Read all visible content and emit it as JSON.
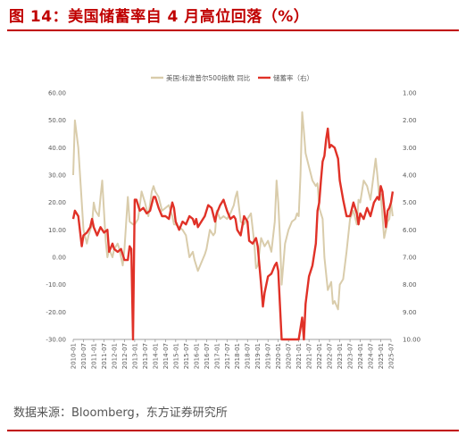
{
  "figure": {
    "title": "图 14：美国储蓄率自 4 月高位回落（%）",
    "source": "数据来源：Bloomberg，东方证券研究所"
  },
  "colors": {
    "spx_yoy": "#d9ccab",
    "saving_rate": "#e03127",
    "accent": "#c00000"
  },
  "chart_data": {
    "type": "line",
    "title": "",
    "legend": [
      "美国:标准普尔500指数 同比",
      "储蓄率（右）"
    ],
    "legend_position": "top-center",
    "grid": false,
    "x_range": [
      "2010-01",
      "2025-07"
    ],
    "x_tick_labels": [
      "2010-01",
      "2010-07",
      "2011-01",
      "2011-07",
      "2012-01",
      "2012-07",
      "2013-01",
      "2013-07",
      "2014-01",
      "2014-07",
      "2015-01",
      "2015-07",
      "2016-01",
      "2016-07",
      "2017-01",
      "2017-07",
      "2018-01",
      "2018-07",
      "2019-01",
      "2019-07",
      "2020-01",
      "2020-07",
      "2021-01",
      "2021-07",
      "2022-01",
      "2022-07",
      "2023-01",
      "2023-07",
      "2024-01",
      "2024-07",
      "2025-01",
      "2025-07"
    ],
    "y_left": {
      "label": "",
      "range": [
        -30,
        60
      ],
      "tick_labels": [
        "60.00",
        "50.00",
        "40.00",
        "30.00",
        "20.00",
        "10.00",
        "0.00",
        "-10.00",
        "-20.00",
        "-30.00"
      ]
    },
    "y_right": {
      "label": "",
      "range": [
        1,
        10
      ],
      "inverted": true,
      "tick_labels": [
        "1.00",
        "2.00",
        "3.00",
        "4.00",
        "5.00",
        "6.00",
        "7.00",
        "8.00",
        "9.00",
        "10.00"
      ]
    },
    "series": [
      {
        "name": "美国:标准普尔500指数 同比",
        "axis": "left",
        "points": [
          [
            "2010-01",
            30
          ],
          [
            "2010-02",
            50
          ],
          [
            "2010-04",
            40
          ],
          [
            "2010-06",
            20
          ],
          [
            "2010-07",
            10
          ],
          [
            "2010-09",
            5
          ],
          [
            "2010-10",
            8
          ],
          [
            "2010-12",
            12
          ],
          [
            "2011-01",
            20
          ],
          [
            "2011-02",
            17
          ],
          [
            "2011-04",
            15
          ],
          [
            "2011-05",
            22
          ],
          [
            "2011-06",
            28
          ],
          [
            "2011-08",
            6
          ],
          [
            "2011-09",
            0
          ],
          [
            "2011-10",
            3
          ],
          [
            "2011-12",
            0
          ],
          [
            "2012-01",
            3
          ],
          [
            "2012-03",
            5
          ],
          [
            "2012-04",
            3
          ],
          [
            "2012-06",
            -3
          ],
          [
            "2012-07",
            3
          ],
          [
            "2012-09",
            22
          ],
          [
            "2012-10",
            13
          ],
          [
            "2012-12",
            12
          ],
          [
            "2013-01",
            12
          ],
          [
            "2013-03",
            14
          ],
          [
            "2013-05",
            24
          ],
          [
            "2013-07",
            20
          ],
          [
            "2013-09",
            15
          ],
          [
            "2013-11",
            24
          ],
          [
            "2013-12",
            26
          ],
          [
            "2014-01",
            24
          ],
          [
            "2014-03",
            22
          ],
          [
            "2014-05",
            17
          ],
          [
            "2014-07",
            18
          ],
          [
            "2014-09",
            19
          ],
          [
            "2014-11",
            15
          ],
          [
            "2014-12",
            12
          ],
          [
            "2015-01",
            12
          ],
          [
            "2015-03",
            11
          ],
          [
            "2015-05",
            10
          ],
          [
            "2015-07",
            8
          ],
          [
            "2015-09",
            0
          ],
          [
            "2015-11",
            2
          ],
          [
            "2015-12",
            -1
          ],
          [
            "2016-01",
            -3
          ],
          [
            "2016-02",
            -5
          ],
          [
            "2016-04",
            -2
          ],
          [
            "2016-06",
            1
          ],
          [
            "2016-07",
            3
          ],
          [
            "2016-09",
            10
          ],
          [
            "2016-11",
            8
          ],
          [
            "2016-12",
            9
          ],
          [
            "2017-01",
            17
          ],
          [
            "2017-03",
            14
          ],
          [
            "2017-05",
            15
          ],
          [
            "2017-07",
            14
          ],
          [
            "2017-09",
            16
          ],
          [
            "2017-11",
            19
          ],
          [
            "2017-12",
            22
          ],
          [
            "2018-01",
            24
          ],
          [
            "2018-03",
            13
          ],
          [
            "2018-05",
            12
          ],
          [
            "2018-07",
            14
          ],
          [
            "2018-09",
            16
          ],
          [
            "2018-11",
            5
          ],
          [
            "2018-12",
            -4
          ],
          [
            "2019-01",
            -3
          ],
          [
            "2019-03",
            7
          ],
          [
            "2019-05",
            4
          ],
          [
            "2019-07",
            6
          ],
          [
            "2019-09",
            2
          ],
          [
            "2019-11",
            13
          ],
          [
            "2019-12",
            28
          ],
          [
            "2020-01",
            20
          ],
          [
            "2020-02",
            7
          ],
          [
            "2020-03",
            -10
          ],
          [
            "2020-05",
            5
          ],
          [
            "2020-07",
            10
          ],
          [
            "2020-09",
            13
          ],
          [
            "2020-11",
            14
          ],
          [
            "2020-12",
            16
          ],
          [
            "2021-01",
            15
          ],
          [
            "2021-02",
            30
          ],
          [
            "2021-03",
            53
          ],
          [
            "2021-04",
            46
          ],
          [
            "2021-05",
            38
          ],
          [
            "2021-07",
            33
          ],
          [
            "2021-09",
            28
          ],
          [
            "2021-11",
            26
          ],
          [
            "2021-12",
            27
          ],
          [
            "2022-01",
            18
          ],
          [
            "2022-03",
            14
          ],
          [
            "2022-04",
            0
          ],
          [
            "2022-06",
            -12
          ],
          [
            "2022-08",
            -9
          ],
          [
            "2022-09",
            -17
          ],
          [
            "2022-10",
            -16
          ],
          [
            "2022-12",
            -19
          ],
          [
            "2023-01",
            -10
          ],
          [
            "2023-03",
            -8
          ],
          [
            "2023-05",
            2
          ],
          [
            "2023-07",
            14
          ],
          [
            "2023-09",
            17
          ],
          [
            "2023-11",
            12
          ],
          [
            "2023-12",
            21
          ],
          [
            "2024-01",
            20
          ],
          [
            "2024-03",
            28
          ],
          [
            "2024-05",
            26
          ],
          [
            "2024-07",
            21
          ],
          [
            "2024-09",
            31
          ],
          [
            "2024-10",
            36
          ],
          [
            "2024-11",
            30
          ],
          [
            "2024-12",
            23
          ],
          [
            "2025-01",
            23
          ],
          [
            "2025-02",
            15
          ],
          [
            "2025-03",
            7
          ],
          [
            "2025-04",
            10
          ],
          [
            "2025-05",
            13
          ],
          [
            "2025-06",
            14
          ],
          [
            "2025-07",
            20
          ],
          [
            "2025-08",
            15
          ]
        ]
      },
      {
        "name": "储蓄率（右）",
        "axis": "right",
        "points": [
          [
            "2010-01",
            5.6
          ],
          [
            "2010-02",
            5.3
          ],
          [
            "2010-04",
            5.5
          ],
          [
            "2010-06",
            6.6
          ],
          [
            "2010-07",
            6.2
          ],
          [
            "2010-09",
            6.1
          ],
          [
            "2010-11",
            5.9
          ],
          [
            "2010-12",
            5.6
          ],
          [
            "2011-01",
            5.9
          ],
          [
            "2011-03",
            6.2
          ],
          [
            "2011-05",
            5.9
          ],
          [
            "2011-07",
            6.1
          ],
          [
            "2011-09",
            6.0
          ],
          [
            "2011-10",
            6.8
          ],
          [
            "2011-12",
            6.5
          ],
          [
            "2012-01",
            6.7
          ],
          [
            "2012-03",
            6.8
          ],
          [
            "2012-05",
            6.7
          ],
          [
            "2012-07",
            7.1
          ],
          [
            "2012-09",
            7.1
          ],
          [
            "2012-10",
            6.6
          ],
          [
            "2012-11",
            6.7
          ],
          [
            "2012-12",
            10.0
          ],
          [
            "2013-01",
            4.9
          ],
          [
            "2013-02",
            4.9
          ],
          [
            "2013-04",
            5.3
          ],
          [
            "2013-06",
            5.2
          ],
          [
            "2013-08",
            5.4
          ],
          [
            "2013-10",
            5.3
          ],
          [
            "2013-12",
            4.8
          ],
          [
            "2014-01",
            4.8
          ],
          [
            "2014-03",
            5.2
          ],
          [
            "2014-05",
            5.5
          ],
          [
            "2014-07",
            5.5
          ],
          [
            "2014-09",
            5.6
          ],
          [
            "2014-11",
            5.0
          ],
          [
            "2014-12",
            5.2
          ],
          [
            "2015-01",
            5.7
          ],
          [
            "2015-03",
            6.0
          ],
          [
            "2015-05",
            5.7
          ],
          [
            "2015-07",
            5.8
          ],
          [
            "2015-09",
            5.5
          ],
          [
            "2015-11",
            5.6
          ],
          [
            "2015-12",
            5.8
          ],
          [
            "2016-01",
            5.6
          ],
          [
            "2016-02",
            5.9
          ],
          [
            "2016-04",
            5.7
          ],
          [
            "2016-06",
            5.5
          ],
          [
            "2016-08",
            5.1
          ],
          [
            "2016-10",
            5.2
          ],
          [
            "2016-12",
            5.7
          ],
          [
            "2017-01",
            5.4
          ],
          [
            "2017-03",
            5.1
          ],
          [
            "2017-05",
            4.9
          ],
          [
            "2017-07",
            5.3
          ],
          [
            "2017-09",
            5.6
          ],
          [
            "2017-11",
            5.5
          ],
          [
            "2017-12",
            5.6
          ],
          [
            "2018-01",
            6.0
          ],
          [
            "2018-03",
            6.2
          ],
          [
            "2018-05",
            5.5
          ],
          [
            "2018-07",
            5.7
          ],
          [
            "2018-08",
            6.4
          ],
          [
            "2018-10",
            6.5
          ],
          [
            "2018-12",
            6.3
          ],
          [
            "2019-01",
            6.6
          ],
          [
            "2019-03",
            8.0
          ],
          [
            "2019-04",
            8.8
          ],
          [
            "2019-05",
            8.3
          ],
          [
            "2019-07",
            7.7
          ],
          [
            "2019-09",
            7.6
          ],
          [
            "2019-11",
            7.3
          ],
          [
            "2019-12",
            7.2
          ],
          [
            "2020-01",
            7.5
          ],
          [
            "2020-03",
            10.0
          ],
          [
            "2020-04",
            10.0
          ],
          [
            "2020-12",
            10.0
          ],
          [
            "2021-01",
            10.0
          ],
          [
            "2021-03",
            9.2
          ],
          [
            "2021-04",
            10.0
          ],
          [
            "2021-05",
            8.7
          ],
          [
            "2021-07",
            7.7
          ],
          [
            "2021-09",
            7.3
          ],
          [
            "2021-11",
            6.5
          ],
          [
            "2021-12",
            5.3
          ],
          [
            "2022-01",
            5.0
          ],
          [
            "2022-02",
            4.2
          ],
          [
            "2022-03",
            3.5
          ],
          [
            "2022-04",
            3.3
          ],
          [
            "2022-05",
            2.7
          ],
          [
            "2022-06",
            2.3
          ],
          [
            "2022-07",
            3.0
          ],
          [
            "2022-08",
            2.9
          ],
          [
            "2022-10",
            3.0
          ],
          [
            "2022-12",
            3.4
          ],
          [
            "2023-01",
            4.2
          ],
          [
            "2023-03",
            4.9
          ],
          [
            "2023-05",
            5.5
          ],
          [
            "2023-07",
            5.5
          ],
          [
            "2023-09",
            5.0
          ],
          [
            "2023-11",
            5.4
          ],
          [
            "2023-12",
            5.8
          ],
          [
            "2024-01",
            5.4
          ],
          [
            "2024-03",
            5.6
          ],
          [
            "2024-05",
            5.2
          ],
          [
            "2024-07",
            5.5
          ],
          [
            "2024-09",
            5.0
          ],
          [
            "2024-11",
            4.8
          ],
          [
            "2024-12",
            4.9
          ],
          [
            "2025-01",
            4.4
          ],
          [
            "2025-02",
            4.6
          ],
          [
            "2025-03",
            5.2
          ],
          [
            "2025-04",
            5.9
          ],
          [
            "2025-05",
            5.3
          ],
          [
            "2025-06",
            5.2
          ],
          [
            "2025-07",
            5.0
          ],
          [
            "2025-08",
            4.6
          ]
        ]
      }
    ]
  }
}
